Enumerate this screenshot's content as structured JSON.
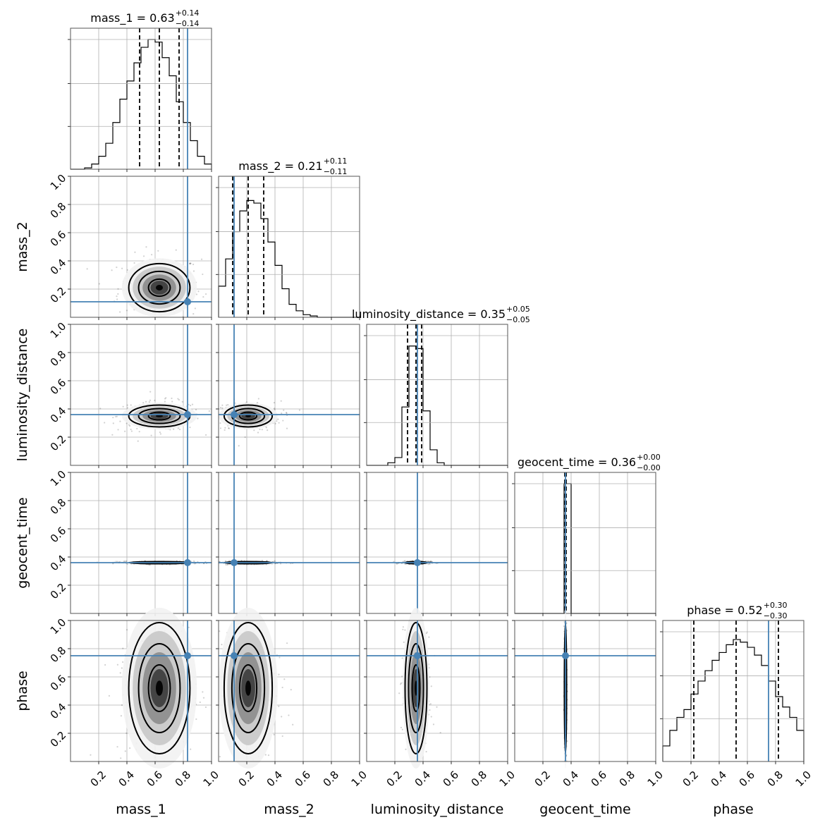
{
  "chart_data": {
    "type": "corner",
    "parameters": [
      "mass_1",
      "mass_2",
      "luminosity_distance",
      "geocent_time",
      "phase"
    ],
    "axis_range": [
      0,
      1
    ],
    "tick_labels": [
      "0.2",
      "0.4",
      "0.6",
      "0.8",
      "1.0"
    ],
    "tick_values": [
      0.2,
      0.4,
      0.6,
      0.8,
      1.0
    ],
    "grid": true,
    "truth_color": "#4682b4",
    "truths": [
      0.83,
      0.11,
      0.36,
      0.36,
      0.75
    ],
    "summary": [
      {
        "param": "mass_1",
        "prefix": "mass_1 = 0.63",
        "sup": "+0.14",
        "sub": "−0.14",
        "median": 0.63,
        "lower": 0.49,
        "upper": 0.77
      },
      {
        "param": "mass_2",
        "prefix": "mass_2 = 0.21",
        "sup": "+0.11",
        "sub": "−0.11",
        "median": 0.21,
        "lower": 0.1,
        "upper": 0.32
      },
      {
        "param": "luminosity_distance",
        "prefix": "luminosity_distance = 0.35",
        "sup": "+0.05",
        "sub": "−0.05",
        "median": 0.35,
        "lower": 0.29,
        "upper": 0.39
      },
      {
        "param": "geocent_time",
        "prefix": "geocent_time = 0.36",
        "sup": "+0.00",
        "sub": "−0.00",
        "median": 0.36,
        "lower": 0.355,
        "upper": 0.365
      },
      {
        "param": "phase",
        "prefix": "phase = 0.52",
        "sup": "+0.30",
        "sub": "−0.30",
        "median": 0.52,
        "lower": 0.22,
        "upper": 0.82
      }
    ],
    "histograms": [
      {
        "bins": 20,
        "counts": [
          0,
          0,
          0.01,
          0.04,
          0.1,
          0.2,
          0.36,
          0.54,
          0.68,
          0.82,
          0.94,
          1.0,
          0.98,
          0.86,
          0.72,
          0.52,
          0.36,
          0.22,
          0.1,
          0.04
        ]
      },
      {
        "bins": 20,
        "counts": [
          0.24,
          0.45,
          0.66,
          0.82,
          0.9,
          0.88,
          0.76,
          0.58,
          0.4,
          0.22,
          0.1,
          0.05,
          0.02,
          0.01,
          0,
          0,
          0,
          0,
          0,
          0
        ]
      },
      {
        "bins": 20,
        "counts": [
          0,
          0,
          0,
          0.02,
          0.06,
          0.45,
          0.92,
          0.9,
          0.42,
          0.12,
          0.02,
          0,
          0,
          0,
          0,
          0,
          0,
          0,
          0,
          0
        ]
      },
      {
        "bins": 20,
        "counts": [
          0,
          0,
          0,
          0,
          0,
          0,
          0,
          1.0,
          0,
          0,
          0,
          0,
          0,
          0,
          0,
          0,
          0,
          0,
          0,
          0
        ]
      },
      {
        "bins": 20,
        "counts": [
          0.12,
          0.24,
          0.34,
          0.4,
          0.52,
          0.62,
          0.7,
          0.78,
          0.84,
          0.9,
          0.94,
          0.92,
          0.88,
          0.82,
          0.74,
          0.62,
          0.5,
          0.42,
          0.34,
          0.24
        ]
      }
    ]
  }
}
